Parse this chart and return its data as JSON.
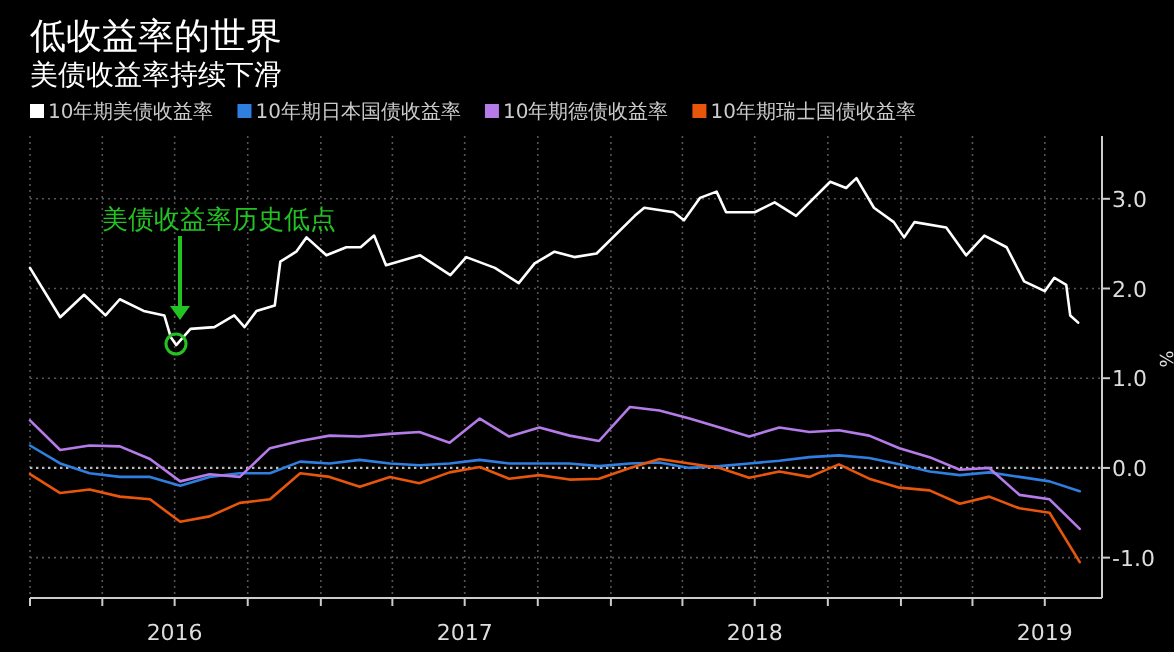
{
  "chart_data": {
    "type": "line",
    "title": "低收益率的世界",
    "subtitle": "美债收益率持续下滑",
    "ylabel": "%",
    "xlim": [
      "2016-01-01",
      "2019-09-11"
    ],
    "ylim": [
      -1.45,
      3.7
    ],
    "xticks": [
      {
        "value": "2016-01-01",
        "label": null
      },
      {
        "value": "2016-04-01",
        "label": null
      },
      {
        "value": "2016-07-01",
        "label": "2016"
      },
      {
        "value": "2016-10-01",
        "label": null
      },
      {
        "value": "2017-01-01",
        "label": null
      },
      {
        "value": "2017-04-01",
        "label": null
      },
      {
        "value": "2017-07-01",
        "label": "2017"
      },
      {
        "value": "2017-10-01",
        "label": null
      },
      {
        "value": "2018-01-01",
        "label": null
      },
      {
        "value": "2018-04-01",
        "label": null
      },
      {
        "value": "2018-07-01",
        "label": "2018"
      },
      {
        "value": "2018-10-01",
        "label": null
      },
      {
        "value": "2019-01-01",
        "label": null
      },
      {
        "value": "2019-04-01",
        "label": null
      },
      {
        "value": "2019-07-01",
        "label": "2019"
      }
    ],
    "yticks": [
      {
        "value": -1,
        "label": "-1.0"
      },
      {
        "value": 0,
        "label": "0.0"
      },
      {
        "value": 1,
        "label": "1.0"
      },
      {
        "value": 2,
        "label": "2.0"
      },
      {
        "value": 3,
        "label": "3.0"
      }
    ],
    "grid": true,
    "legend": "top left",
    "ref_lines": [
      {
        "axis": "y",
        "value": 0,
        "color": "#bbbbbb",
        "line_style": "dotted"
      }
    ],
    "x": [
      "2016-01-01",
      "2016-02-08",
      "2016-03-16",
      "2016-04-23",
      "2016-05-31",
      "2016-07-08",
      "2016-08-14",
      "2016-09-21",
      "2016-10-29",
      "2016-12-06",
      "2017-01-12",
      "2017-02-19",
      "2017-03-29",
      "2017-05-05",
      "2017-06-12",
      "2017-07-20",
      "2017-08-26",
      "2017-10-03",
      "2017-11-10",
      "2017-12-17",
      "2018-01-25",
      "2018-03-03",
      "2018-04-10",
      "2018-05-18",
      "2018-06-24",
      "2018-08-01",
      "2018-09-08",
      "2018-10-15",
      "2018-11-22",
      "2018-12-30",
      "2019-02-06",
      "2019-03-16",
      "2019-04-22",
      "2019-05-30",
      "2019-07-07",
      "2019-08-14"
    ],
    "series": [
      {
        "name": "10年期美债收益率",
        "color": "#ffffff",
        "x": [
          "2016-01-01",
          "2016-02-08",
          "2016-03-09",
          "2016-04-05",
          "2016-04-23",
          "2016-05-23",
          "2016-06-18",
          "2016-06-26",
          "2016-07-03",
          "2016-07-21",
          "2016-08-20",
          "2016-09-14",
          "2016-09-27",
          "2016-10-12",
          "2016-11-04",
          "2016-11-11",
          "2016-12-01",
          "2016-12-14",
          "2017-01-08",
          "2017-02-02",
          "2017-02-20",
          "2017-03-09",
          "2017-03-24",
          "2017-05-06",
          "2017-06-13",
          "2017-07-03",
          "2017-08-08",
          "2017-09-07",
          "2017-09-27",
          "2017-10-22",
          "2017-11-16",
          "2017-12-14",
          "2018-01-31",
          "2018-02-12",
          "2018-03-21",
          "2018-04-03",
          "2018-04-23",
          "2018-05-14",
          "2018-05-26",
          "2018-07-01",
          "2018-07-26",
          "2018-08-22",
          "2018-10-04",
          "2018-10-24",
          "2018-11-06",
          "2018-11-28",
          "2018-12-23",
          "2019-01-05",
          "2019-01-18",
          "2019-02-27",
          "2019-03-24",
          "2019-04-16",
          "2019-05-14",
          "2019-06-05",
          "2019-07-01",
          "2019-07-13",
          "2019-07-28",
          "2019-08-02",
          "2019-08-12"
        ],
        "values": [
          2.23,
          1.68,
          1.93,
          1.7,
          1.88,
          1.75,
          1.7,
          1.46,
          1.37,
          1.55,
          1.57,
          1.7,
          1.57,
          1.75,
          1.81,
          2.3,
          2.41,
          2.57,
          2.37,
          2.46,
          2.46,
          2.59,
          2.26,
          2.37,
          2.15,
          2.35,
          2.23,
          2.06,
          2.28,
          2.41,
          2.35,
          2.39,
          2.81,
          2.9,
          2.85,
          2.76,
          3.01,
          3.08,
          2.85,
          2.85,
          2.96,
          2.81,
          3.19,
          3.12,
          3.23,
          2.9,
          2.74,
          2.57,
          2.74,
          2.68,
          2.37,
          2.59,
          2.46,
          2.08,
          1.97,
          2.12,
          2.04,
          1.7,
          1.62
        ]
      },
      {
        "name": "10年期日本国债收益率",
        "color": "#2f7fe0",
        "values": [
          0.25,
          0.05,
          -0.06,
          -0.1,
          -0.1,
          -0.2,
          -0.1,
          -0.06,
          -0.06,
          0.07,
          0.05,
          0.09,
          0.05,
          0.03,
          0.05,
          0.09,
          0.05,
          0.05,
          0.05,
          0.02,
          0.05,
          0.06,
          0.0,
          0.02,
          0.05,
          0.08,
          0.12,
          0.14,
          0.11,
          0.04,
          -0.04,
          -0.08,
          -0.05,
          -0.1,
          -0.15,
          -0.26
        ]
      },
      {
        "name": "10年期德债收益率",
        "color": "#b57be8",
        "values": [
          0.53,
          0.2,
          0.25,
          0.24,
          0.1,
          -0.15,
          -0.07,
          -0.1,
          0.22,
          0.3,
          0.36,
          0.35,
          0.38,
          0.4,
          0.28,
          0.55,
          0.35,
          0.45,
          0.36,
          0.3,
          0.68,
          0.64,
          0.55,
          0.45,
          0.35,
          0.45,
          0.4,
          0.42,
          0.36,
          0.22,
          0.12,
          -0.02,
          0.0,
          -0.3,
          -0.35,
          -0.68
        ]
      },
      {
        "name": "10年期瑞士国债收益率",
        "color": "#e8560c",
        "values": [
          -0.07,
          -0.28,
          -0.24,
          -0.32,
          -0.35,
          -0.6,
          -0.54,
          -0.39,
          -0.35,
          -0.06,
          -0.1,
          -0.21,
          -0.1,
          -0.17,
          -0.05,
          0.01,
          -0.12,
          -0.08,
          -0.13,
          -0.12,
          0.0,
          0.1,
          0.05,
          0.0,
          -0.11,
          -0.04,
          -0.1,
          0.04,
          -0.12,
          -0.22,
          -0.25,
          -0.4,
          -0.32,
          -0.45,
          -0.5,
          -1.05
        ]
      }
    ],
    "annotations": [
      "美债收益率历史低点"
    ]
  }
}
